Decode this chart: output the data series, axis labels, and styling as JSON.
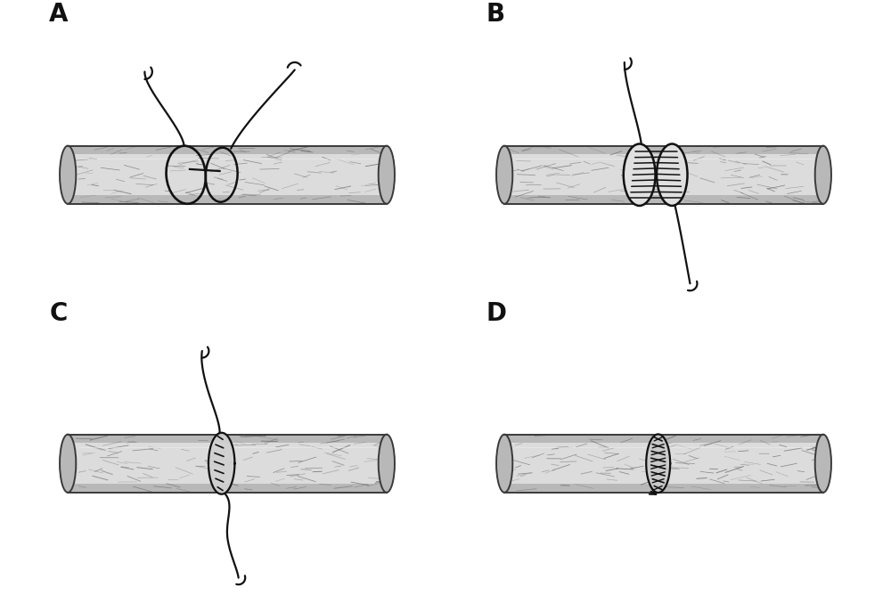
{
  "background_color": "#ffffff",
  "panel_labels": [
    "A",
    "B",
    "C",
    "D"
  ],
  "panel_label_fontsize": 20,
  "panel_label_color": "#111111",
  "suture_color": "#111111",
  "vessel_fill_light": "#e8e8e8",
  "vessel_fill_dark": "#b0b0b0",
  "vessel_edge": "#444444",
  "texture_color": "#888888",
  "lw_suture": 1.6,
  "lw_vessel": 1.4
}
